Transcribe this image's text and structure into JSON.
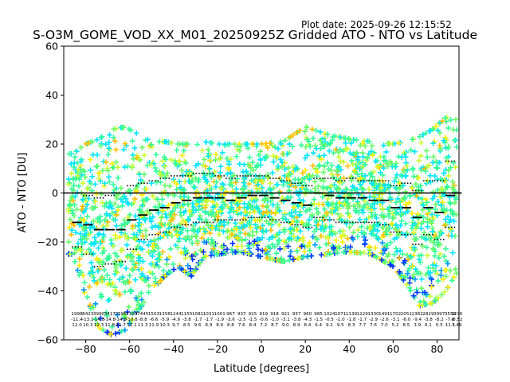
{
  "header": {
    "plot_date": "Plot date: 2025-09-26 12:15:52",
    "title": "S-O3M_GOME_VOD_XX_M01_20250925Z Gridded ATO - NTO vs Latitude"
  },
  "colors": {
    "scatter": [
      "#00e5ff",
      "#33ff99",
      "#66ff66",
      "#ccff33",
      "#ffee00",
      "#ffbf00",
      "#0099ff",
      "#0033ff"
    ],
    "median_marker": "#000000",
    "zero_line": "#000000"
  },
  "chart_data": {
    "type": "scatter",
    "title": "S-O3M_GOME_VOD_XX_M01_20250925Z Gridded ATO - NTO vs Latitude",
    "xlabel": "Latitude [degrees]",
    "ylabel": "ATO - NTO [DU]",
    "xlim": [
      -90,
      90
    ],
    "ylim": [
      -60,
      60
    ],
    "xticks": [
      -80,
      -60,
      -40,
      -20,
      0,
      20,
      40,
      60,
      80
    ],
    "yticks": [
      -60,
      -40,
      -20,
      0,
      20,
      40,
      60
    ],
    "xtick_labels": [
      "−80",
      "−60",
      "−40",
      "−20",
      "0",
      "20",
      "40",
      "60",
      "80"
    ],
    "ytick_labels": [
      "−60",
      "−40",
      "−20",
      "0",
      "20",
      "40",
      "60"
    ],
    "reference_line_y": 0,
    "scatter_envelope": [
      {
        "lat": -86,
        "low": -25,
        "high": 16
      },
      {
        "lat": -80,
        "low": -42,
        "high": 20
      },
      {
        "lat": -74,
        "low": -55,
        "high": 22
      },
      {
        "lat": -68,
        "low": -58,
        "high": 26
      },
      {
        "lat": -62,
        "low": -56,
        "high": 27
      },
      {
        "lat": -56,
        "low": -48,
        "high": 24
      },
      {
        "lat": -50,
        "low": -40,
        "high": 21
      },
      {
        "lat": -44,
        "low": -34,
        "high": 21
      },
      {
        "lat": -38,
        "low": -30,
        "high": 20
      },
      {
        "lat": -32,
        "low": -34,
        "high": 20
      },
      {
        "lat": -26,
        "low": -26,
        "high": 21
      },
      {
        "lat": -20,
        "low": -25,
        "high": 20
      },
      {
        "lat": -10,
        "low": -24,
        "high": 20
      },
      {
        "lat": 0,
        "low": -26,
        "high": 20
      },
      {
        "lat": 10,
        "low": -28,
        "high": 21
      },
      {
        "lat": 20,
        "low": -26,
        "high": 27
      },
      {
        "lat": 30,
        "low": -25,
        "high": 24
      },
      {
        "lat": 40,
        "low": -24,
        "high": 22
      },
      {
        "lat": 50,
        "low": -25,
        "high": 21
      },
      {
        "lat": 60,
        "low": -30,
        "high": 20
      },
      {
        "lat": 66,
        "low": -37,
        "high": 21
      },
      {
        "lat": 72,
        "low": -46,
        "high": 23
      },
      {
        "lat": 78,
        "low": -45,
        "high": 26
      },
      {
        "lat": 84,
        "low": -40,
        "high": 31
      },
      {
        "lat": 88,
        "low": -34,
        "high": 30
      }
    ],
    "medians": [
      {
        "lat": -84,
        "y": -12
      },
      {
        "lat": -79,
        "y": -13
      },
      {
        "lat": -74,
        "y": -15
      },
      {
        "lat": -69,
        "y": -15
      },
      {
        "lat": -64,
        "y": -15
      },
      {
        "lat": -59,
        "y": -11
      },
      {
        "lat": -54,
        "y": -9
      },
      {
        "lat": -49,
        "y": -7
      },
      {
        "lat": -44,
        "y": -6
      },
      {
        "lat": -39,
        "y": -4
      },
      {
        "lat": -34,
        "y": -3
      },
      {
        "lat": -29,
        "y": -2
      },
      {
        "lat": -24,
        "y": -2
      },
      {
        "lat": -19,
        "y": -2
      },
      {
        "lat": -14,
        "y": -3
      },
      {
        "lat": -9,
        "y": -2
      },
      {
        "lat": -4,
        "y": -1
      },
      {
        "lat": 1,
        "y": -1
      },
      {
        "lat": 6,
        "y": -2
      },
      {
        "lat": 11,
        "y": -3
      },
      {
        "lat": 16,
        "y": -4
      },
      {
        "lat": 21,
        "y": -5
      },
      {
        "lat": 26,
        "y": 0
      },
      {
        "lat": 31,
        "y": -1
      },
      {
        "lat": 36,
        "y": -2
      },
      {
        "lat": 41,
        "y": -2
      },
      {
        "lat": 46,
        "y": -2
      },
      {
        "lat": 51,
        "y": -3
      },
      {
        "lat": 56,
        "y": -3
      },
      {
        "lat": 61,
        "y": -6
      },
      {
        "lat": 66,
        "y": -6
      },
      {
        "lat": 71,
        "y": -10
      },
      {
        "lat": 76,
        "y": -6
      },
      {
        "lat": 81,
        "y": -8
      },
      {
        "lat": 86,
        "y": -1
      },
      {
        "lat": 89,
        "y": 0
      }
    ],
    "bands": [
      {
        "lat": -84,
        "p_high": 0,
        "p_low": -22
      },
      {
        "lat": -79,
        "p_high": -1,
        "p_low": -25
      },
      {
        "lat": -74,
        "p_high": -2,
        "p_low": -30
      },
      {
        "lat": -69,
        "p_high": -1,
        "p_low": -29
      },
      {
        "lat": -64,
        "p_high": 0,
        "p_low": -28
      },
      {
        "lat": -59,
        "p_high": 3,
        "p_low": -23
      },
      {
        "lat": -54,
        "p_high": 4,
        "p_low": -19
      },
      {
        "lat": -49,
        "p_high": 5,
        "p_low": -17
      },
      {
        "lat": -44,
        "p_high": 6,
        "p_low": -16
      },
      {
        "lat": -39,
        "p_high": 7,
        "p_low": -14
      },
      {
        "lat": -34,
        "p_high": 7,
        "p_low": -13
      },
      {
        "lat": -29,
        "p_high": 8,
        "p_low": -12
      },
      {
        "lat": -24,
        "p_high": 8,
        "p_low": -12
      },
      {
        "lat": -19,
        "p_high": 7,
        "p_low": -11
      },
      {
        "lat": -14,
        "p_high": 6,
        "p_low": -11
      },
      {
        "lat": -9,
        "p_high": 7,
        "p_low": -11
      },
      {
        "lat": -4,
        "p_high": 7,
        "p_low": -10
      },
      {
        "lat": 1,
        "p_high": 7,
        "p_low": -10
      },
      {
        "lat": 6,
        "p_high": 6,
        "p_low": -11
      },
      {
        "lat": 11,
        "p_high": 5,
        "p_low": -12
      },
      {
        "lat": 16,
        "p_high": 4,
        "p_low": -13
      },
      {
        "lat": 21,
        "p_high": 3,
        "p_low": -14
      },
      {
        "lat": 26,
        "p_high": 6,
        "p_low": -10
      },
      {
        "lat": 31,
        "p_high": 6,
        "p_low": -11
      },
      {
        "lat": 36,
        "p_high": 5,
        "p_low": -12
      },
      {
        "lat": 41,
        "p_high": 6,
        "p_low": -12
      },
      {
        "lat": 46,
        "p_high": 5,
        "p_low": -12
      },
      {
        "lat": 51,
        "p_high": 5,
        "p_low": -12
      },
      {
        "lat": 56,
        "p_high": 5,
        "p_low": -13
      },
      {
        "lat": 61,
        "p_high": 3,
        "p_low": -16
      },
      {
        "lat": 66,
        "p_high": 4,
        "p_low": -17
      },
      {
        "lat": 71,
        "p_high": 1,
        "p_low": -21
      },
      {
        "lat": 76,
        "p_high": 5,
        "p_low": -17
      },
      {
        "lat": 81,
        "p_high": 5,
        "p_low": -19
      },
      {
        "lat": 86,
        "p_high": 13,
        "p_low": -14
      }
    ],
    "annotations": [
      {
        "lat": -84,
        "count": "1998",
        "mean": "-11.4",
        "std": "12.0"
      },
      {
        "lat": -79,
        "count": "8423",
        "mean": "-13.1",
        "std": "10.3"
      },
      {
        "lat": -74,
        "count": "3990",
        "mean": "-14.8",
        "std": "12.3"
      },
      {
        "lat": -69,
        "count": "3417",
        "mean": "-14.8",
        "std": "11.8"
      },
      {
        "lat": -64,
        "count": "2596",
        "mean": "-14.8",
        "std": "11.7"
      },
      {
        "lat": -59,
        "count": "7393",
        "mean": "-10.8",
        "std": "11.1"
      },
      {
        "lat": -54,
        "count": "7445",
        "mean": "-8.8",
        "std": "11.3"
      },
      {
        "lat": -49,
        "count": "1503",
        "mean": "-6.6",
        "std": "11.9"
      },
      {
        "lat": -44,
        "count": "1358",
        "mean": "-5.9",
        "std": "10.3"
      },
      {
        "lat": -39,
        "count": "1244",
        "mean": "-4.9",
        "std": "9.7"
      },
      {
        "lat": -34,
        "count": "1155",
        "mean": "-3.8",
        "std": "8.5"
      },
      {
        "lat": -29,
        "count": "1081",
        "mean": "-1.7",
        "std": "9.6"
      },
      {
        "lat": -24,
        "count": "1031",
        "mean": "-1.7",
        "std": "8.9"
      },
      {
        "lat": -19,
        "count": "1001",
        "mean": "-1.9",
        "std": "8.9"
      },
      {
        "lat": -14,
        "count": "967",
        "mean": "-3.6",
        "std": "8.8"
      },
      {
        "lat": -9,
        "count": "937",
        "mean": "-2.5",
        "std": "7.6"
      },
      {
        "lat": -4,
        "count": "925",
        "mean": "-1.5",
        "std": "8.4"
      },
      {
        "lat": 1,
        "count": "919",
        "mean": "-0.6",
        "std": "7.2"
      },
      {
        "lat": 6,
        "count": "918",
        "mean": "-1.0",
        "std": "8.7"
      },
      {
        "lat": 11,
        "count": "921",
        "mean": "-3.1",
        "std": "9.0"
      },
      {
        "lat": 16,
        "count": "937",
        "mean": "-3.8",
        "std": "8.9"
      },
      {
        "lat": 21,
        "count": "960",
        "mean": "-4.3",
        "std": "8.4"
      },
      {
        "lat": 26,
        "count": "985",
        "mean": "-1.5",
        "std": "6.4"
      },
      {
        "lat": 31,
        "count": "1024",
        "mean": "-0.5",
        "std": "9.2"
      },
      {
        "lat": 36,
        "count": "1071",
        "mean": "-1.0",
        "std": "9.5"
      },
      {
        "lat": 41,
        "count": "1139",
        "mean": "-1.8",
        "std": "8.3"
      },
      {
        "lat": 46,
        "count": "1229",
        "mean": "-1.7",
        "std": "7.7"
      },
      {
        "lat": 51,
        "count": "1330",
        "mean": "-2.9",
        "std": "7.6"
      },
      {
        "lat": 56,
        "count": "1491",
        "mean": "-2.6",
        "std": "7.0"
      },
      {
        "lat": 61,
        "count": "1702",
        "mean": "-3.1",
        "std": "5.2"
      },
      {
        "lat": 66,
        "count": "2051",
        "mean": "-6.0",
        "std": "8.5"
      },
      {
        "lat": 71,
        "count": "2382",
        "mean": "-9.4",
        "std": "3.9"
      },
      {
        "lat": 76,
        "count": "2829",
        "mean": "-3.8",
        "std": "6.1"
      },
      {
        "lat": 81,
        "count": "3997",
        "mean": "-8.2",
        "std": "0.5"
      },
      {
        "lat": 86,
        "count": "3558",
        "mean": "-7.8",
        "std": "11.1"
      },
      {
        "lat": 89,
        "count": "1236",
        "mean": "-0.52",
        "std": "3.49"
      }
    ],
    "grid": false,
    "legend": "none"
  }
}
